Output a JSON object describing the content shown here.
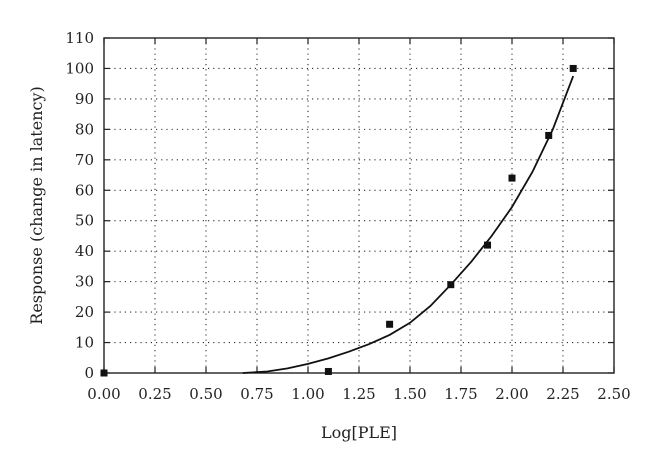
{
  "chart_data": {
    "type": "scatter",
    "title": "",
    "xlabel": "Log[PLE]",
    "ylabel": "Response (change in latency)",
    "xlim": [
      0,
      2.5
    ],
    "ylim": [
      0,
      110
    ],
    "x_ticks": [
      "0.00",
      "0.25",
      "0.50",
      "0.75",
      "1.00",
      "1.25",
      "1.50",
      "1.75",
      "2.00",
      "2.25",
      "2.50"
    ],
    "y_ticks": [
      "0",
      "10",
      "20",
      "30",
      "40",
      "50",
      "60",
      "70",
      "80",
      "90",
      "100",
      "110"
    ],
    "grid": true,
    "legend": "none",
    "series": [
      {
        "kind": "points",
        "marker": "square",
        "x": [
          0.0,
          1.1,
          1.4,
          1.7,
          1.88,
          2.0,
          2.18,
          2.3
        ],
        "y": [
          0,
          0.5,
          16,
          29,
          42,
          64,
          78,
          100
        ]
      },
      {
        "kind": "fit-line",
        "x": [
          0.68,
          0.8,
          0.9,
          1.0,
          1.1,
          1.2,
          1.3,
          1.4,
          1.5,
          1.6,
          1.7,
          1.8,
          1.9,
          2.0,
          2.1,
          2.2,
          2.3
        ],
        "y": [
          0,
          0.5,
          1.5,
          3.0,
          4.8,
          7.0,
          9.5,
          12.5,
          16.5,
          22.0,
          29.0,
          36.5,
          45.0,
          54.5,
          66.0,
          80.0,
          97.5
        ]
      }
    ],
    "colors": {
      "marks": "#111111",
      "grid": "#333333"
    }
  }
}
